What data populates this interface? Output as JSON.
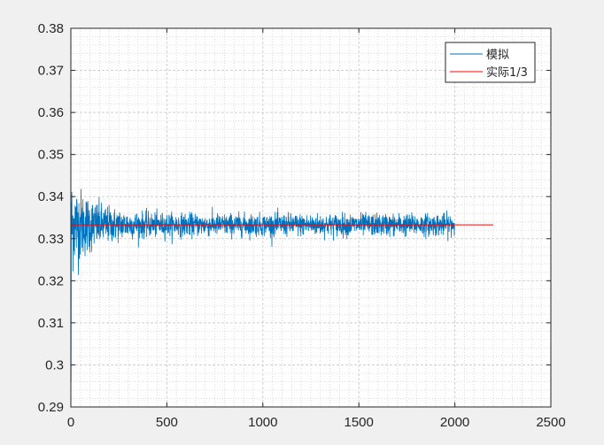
{
  "chart_data": {
    "type": "line",
    "title": "",
    "xlabel": "",
    "ylabel": "",
    "xlim": [
      0,
      2500
    ],
    "ylim": [
      0.29,
      0.38
    ],
    "xticks": [
      "0",
      "500",
      "1000",
      "1500",
      "2000",
      "2500"
    ],
    "yticks": [
      "0.29",
      "0.3",
      "0.31",
      "0.32",
      "0.33",
      "0.34",
      "0.35",
      "0.36",
      "0.37",
      "0.38"
    ],
    "grid": "on (major and minor)",
    "legend_position": "top-right",
    "series": [
      {
        "name": "模拟",
        "color": "#0072bd",
        "x_range": [
          1,
          2000
        ],
        "approx_center": 0.3333,
        "first_value": 0.296,
        "description_of_values": "noisy, spread narrowing from about ±0.01 near start to about ±0.003 after x≈300"
      },
      {
        "name": "实际1/3",
        "color": "#ff0000",
        "x": [
          0,
          2200
        ],
        "y": [
          0.3333,
          0.3333
        ]
      }
    ]
  }
}
